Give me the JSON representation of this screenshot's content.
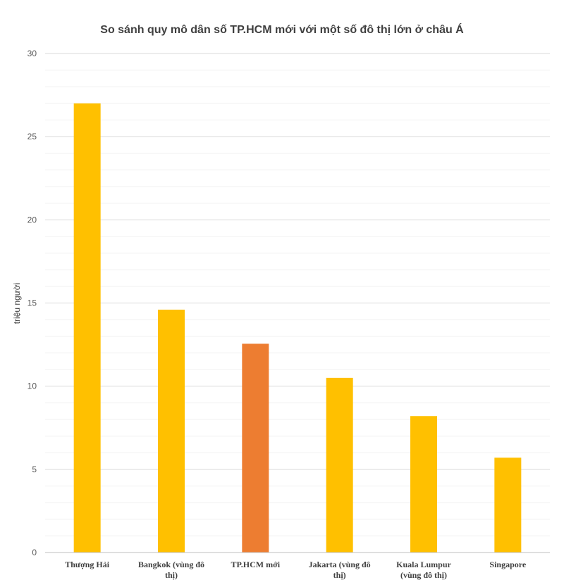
{
  "chart_data": {
    "type": "bar",
    "title": "So sánh quy mô dân số TP.HCM mới với một số đô thị lớn ở châu Á",
    "xlabel": "",
    "ylabel": "triệu người",
    "ylim": [
      0,
      30
    ],
    "yticks": [
      "0",
      "5",
      "10",
      "15",
      "20",
      "25",
      "30"
    ],
    "grid": true,
    "categories": [
      [
        "Thượng Hải"
      ],
      [
        "Bangkok (vùng đô",
        "thị)"
      ],
      [
        "TP.HCM mới"
      ],
      [
        "Jakarta (vùng đô",
        "thị)"
      ],
      [
        "Kuala Lumpur",
        "(vùng đô thị)"
      ],
      [
        "Singapore"
      ]
    ],
    "values": [
      27.0,
      14.6,
      12.55,
      10.5,
      8.2,
      5.7
    ],
    "colors": [
      "#ffc000",
      "#ffc000",
      "#ed7d31",
      "#ffc000",
      "#ffc000",
      "#ffc000"
    ]
  }
}
